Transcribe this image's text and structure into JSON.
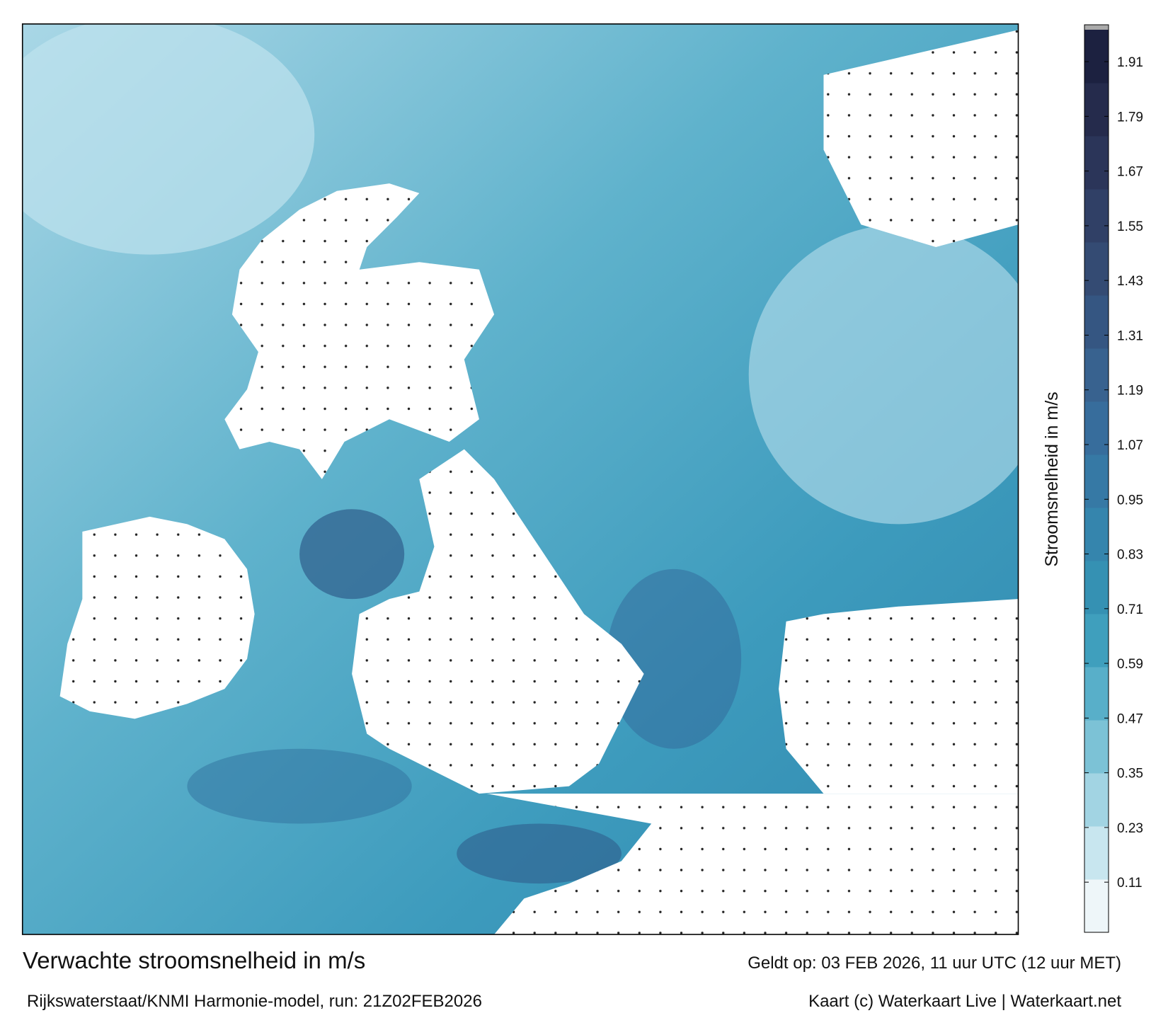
{
  "chart_data": {
    "type": "colormap",
    "title": "Verwachte stroomsnelheid in m/s",
    "subtitle": "Rijkswaterstaat/KNMI Harmonie-model, run: 21Z02FEB2026",
    "valid_time": "Geldt op: 03 FEB 2026, 11 uur UTC (12 uur MET)",
    "credit": "Kaart (c) Waterkaart Live | Waterkaart.net",
    "colorbar": {
      "label": "Stroomsnelheid in m/s",
      "lim": [
        0,
        1.98
      ],
      "ticks": [
        0.11,
        0.23,
        0.35,
        0.47,
        0.59,
        0.71,
        0.83,
        0.95,
        1.07,
        1.19,
        1.31,
        1.43,
        1.55,
        1.67,
        1.79,
        1.91
      ],
      "colors": [
        "#eef6f9",
        "#c8e6ef",
        "#a2d4e3",
        "#7cc2d6",
        "#58afc9",
        "#3f9fbd",
        "#3591b3",
        "#3585ad",
        "#3679a5",
        "#376d9c",
        "#38628f",
        "#355682",
        "#344b73",
        "#304066",
        "#2b3559",
        "#252b4c",
        "#1c2140"
      ]
    }
  }
}
